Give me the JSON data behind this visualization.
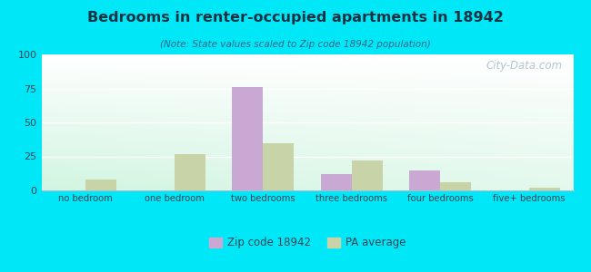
{
  "title": "Bedrooms in renter-occupied apartments in 18942",
  "subtitle": "(Note: State values scaled to Zip code 18942 population)",
  "categories": [
    "no bedroom",
    "one bedroom",
    "two bedrooms",
    "three bedrooms",
    "four bedrooms",
    "five+ bedrooms"
  ],
  "zip_values": [
    0,
    0,
    76,
    12,
    15,
    0
  ],
  "pa_values": [
    8,
    27,
    35,
    22,
    6,
    2
  ],
  "zip_color": "#c9a8d4",
  "pa_color": "#c8d4a8",
  "background_outer": "#00e8f8",
  "ylim": [
    0,
    100
  ],
  "yticks": [
    0,
    25,
    50,
    75,
    100
  ],
  "legend_zip_label": "Zip code 18942",
  "legend_pa_label": "PA average",
  "bar_width": 0.35,
  "watermark": "City-Data.com"
}
